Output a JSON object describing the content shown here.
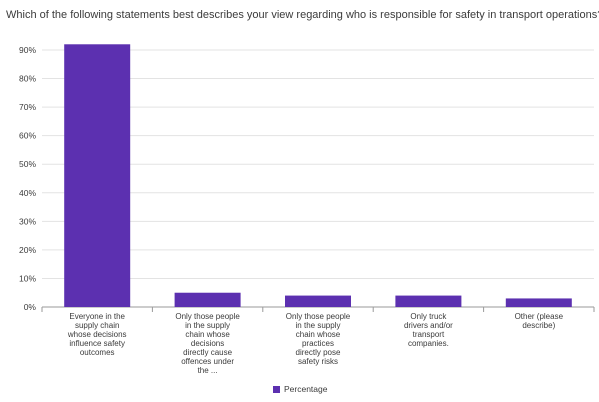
{
  "chart_data": {
    "type": "bar",
    "title": "Which of the following statements best describes your view regarding who is responsible for safety in transport operations?",
    "categories": [
      [
        "Everyone in the",
        "supply chain",
        "whose decisions",
        "influence safety",
        "outcomes"
      ],
      [
        "Only those people",
        "in the supply",
        "chain whose",
        "decisions",
        "directly cause",
        "offences under",
        "the ..."
      ],
      [
        "Only those people",
        "in the supply",
        "chain whose",
        "practices",
        "directly pose",
        "safety risks"
      ],
      [
        "Only truck",
        "drivers and/or",
        "transport",
        "companies."
      ],
      [
        "Other (please",
        "describe)"
      ]
    ],
    "series": [
      {
        "name": "Percentage",
        "values": [
          92,
          5,
          4,
          4,
          3
        ]
      }
    ],
    "ylim": [
      0,
      90
    ],
    "yticks": [
      "0%",
      "10%",
      "20%",
      "30%",
      "40%",
      "50%",
      "60%",
      "70%",
      "80%",
      "90%"
    ],
    "legend_position": "bottom-center",
    "grid": true,
    "colors": {
      "bar": "#5c30b0",
      "grid": "#e3e3e3",
      "axis": "#9a9a9a",
      "text": "#3b3b3b"
    }
  }
}
